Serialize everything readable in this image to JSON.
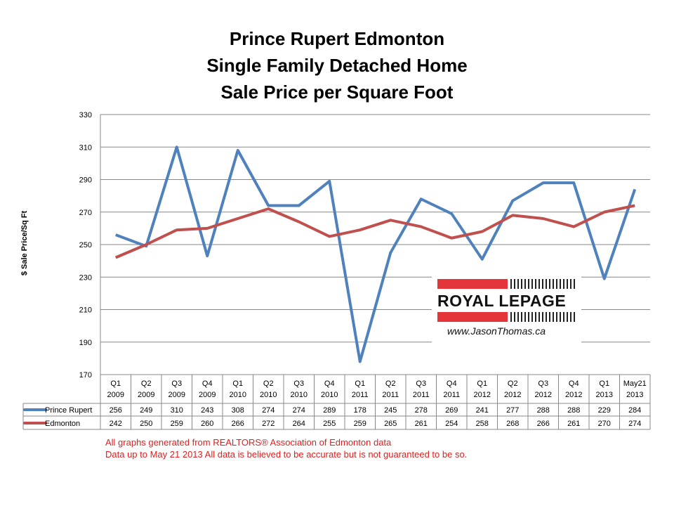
{
  "chart_data": {
    "type": "line",
    "title": [
      "Prince Rupert Edmonton",
      "Single Family Detached Home",
      "Sale Price per Square Foot"
    ],
    "ylabel": "$ Sale Price/Sq Ft",
    "ylim": [
      170,
      330
    ],
    "yticks": [
      170,
      190,
      210,
      230,
      250,
      270,
      290,
      310,
      330
    ],
    "grid": true,
    "legend": "table-bottom",
    "categories": [
      [
        "Q1",
        "2009"
      ],
      [
        "Q2",
        "2009"
      ],
      [
        "Q3",
        "2009"
      ],
      [
        "Q4",
        "2009"
      ],
      [
        "Q1",
        "2010"
      ],
      [
        "Q2",
        "2010"
      ],
      [
        "Q3",
        "2010"
      ],
      [
        "Q4",
        "2010"
      ],
      [
        "Q1",
        "2011"
      ],
      [
        "Q2",
        "2011"
      ],
      [
        "Q3",
        "2011"
      ],
      [
        "Q4",
        "2011"
      ],
      [
        "Q1",
        "2012"
      ],
      [
        "Q2",
        "2012"
      ],
      [
        "Q3",
        "2012"
      ],
      [
        "Q4",
        "2012"
      ],
      [
        "Q1",
        "2013"
      ],
      [
        "May21",
        "2013"
      ]
    ],
    "series": [
      {
        "name": "Prince Rupert",
        "color": "#4f81bd",
        "values": [
          256,
          249,
          310,
          243,
          308,
          274,
          274,
          289,
          178,
          245,
          278,
          269,
          241,
          277,
          288,
          288,
          229,
          284
        ]
      },
      {
        "name": "Edmonton",
        "color": "#c0504d",
        "values": [
          242,
          250,
          259,
          260,
          266,
          272,
          264,
          255,
          259,
          265,
          261,
          254,
          258,
          268,
          266,
          261,
          270,
          274
        ]
      }
    ]
  },
  "logo": {
    "brand": "ROYAL LEPAGE",
    "url": "www.JasonThomas.ca"
  },
  "footer": [
    "All graphs generated from REALTORS® Association of Edmonton data",
    "Data up to  May 21 2013  All data is believed to be accurate but is not guaranteed to be so."
  ]
}
